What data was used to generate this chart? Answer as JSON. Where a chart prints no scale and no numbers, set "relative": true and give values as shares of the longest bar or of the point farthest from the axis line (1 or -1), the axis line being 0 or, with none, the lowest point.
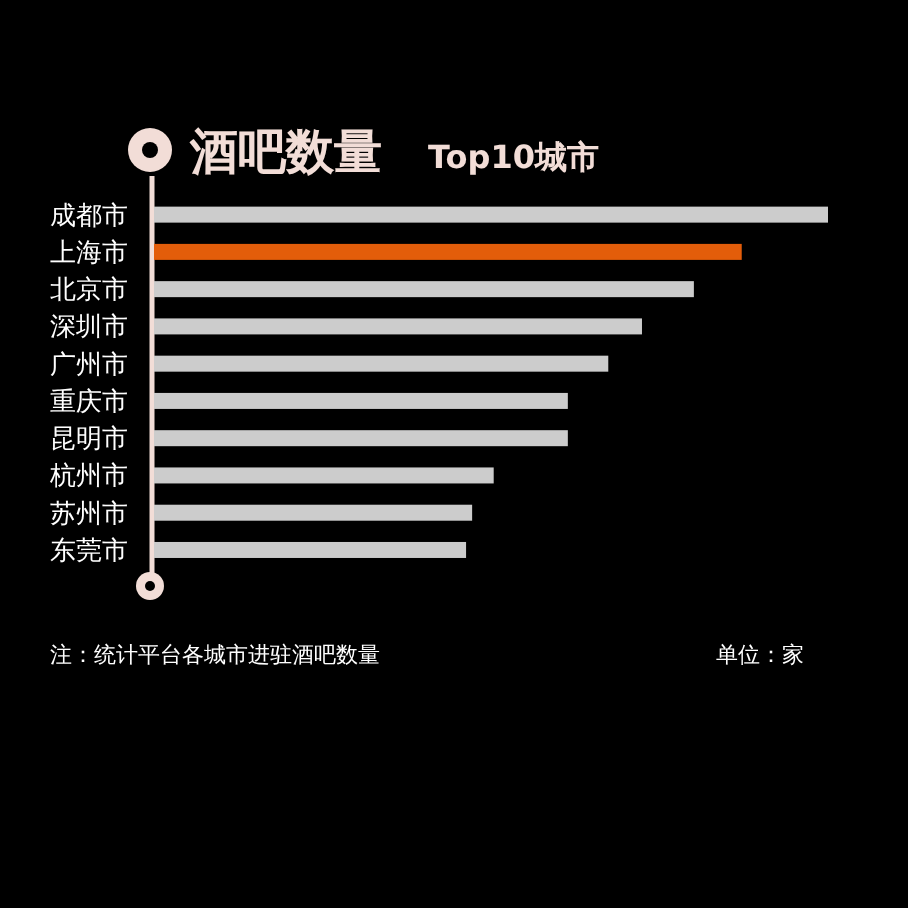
{
  "chart_data": {
    "type": "bar",
    "orientation": "horizontal",
    "relative": true,
    "title": "酒吧数量",
    "subtitle": "Top10城市",
    "categories": [
      "成都市",
      "上海市",
      "北京市",
      "深圳市",
      "广州市",
      "重庆市",
      "昆明市",
      "杭州市",
      "苏州市",
      "东莞市"
    ],
    "values": [
      1,
      0.872,
      0.801,
      0.724,
      0.674,
      0.614,
      0.614,
      0.504,
      0.472,
      0.463
    ],
    "colors": [
      "#cccccc",
      "#e35d0a",
      "#cccccc",
      "#cccccc",
      "#cccccc",
      "#cccccc",
      "#cccccc",
      "#cccccc",
      "#cccccc",
      "#cccccc"
    ],
    "annotations": [
      "注：统计平台各城市进驻酒吧数量",
      "单位：家"
    ]
  }
}
